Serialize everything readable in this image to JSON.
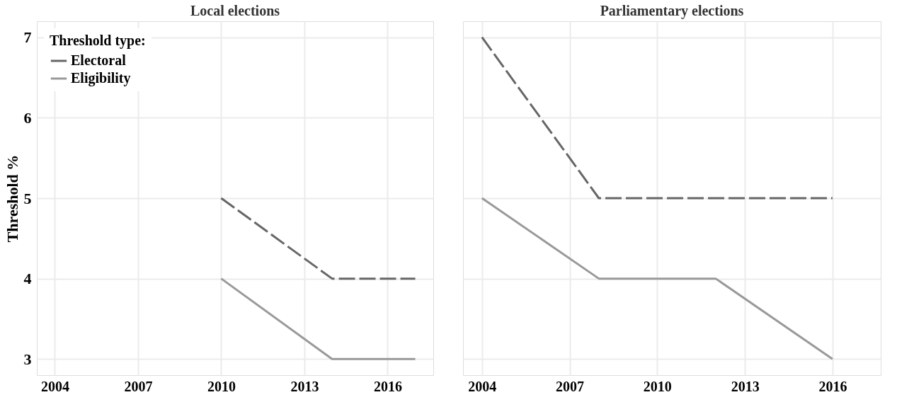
{
  "chart_data": [
    {
      "type": "line",
      "title": "Local elections",
      "ylabel": "Threshold %",
      "legend_title": "Threshold type:",
      "legend": "top left",
      "grid": true,
      "xlim": [
        2003.35,
        2017.65
      ],
      "xticks": [
        2004,
        2007,
        2010,
        2013,
        2016
      ],
      "ylim": [
        2.8,
        7.2
      ],
      "yticks": [
        3,
        4,
        5,
        6,
        7
      ],
      "series": [
        {
          "name": "Electoral",
          "color": "#666666",
          "line_style": "dashed",
          "x": [
            2010,
            2014,
            2017
          ],
          "values": [
            5,
            4,
            4
          ]
        },
        {
          "name": "Eligibility",
          "color": "#999999",
          "line_style": "solid",
          "x": [
            2010,
            2014,
            2017
          ],
          "values": [
            4,
            3,
            3
          ]
        }
      ]
    },
    {
      "type": "line",
      "title": "Parliamentary elections",
      "grid": true,
      "tick_labels": "x",
      "xlim": [
        2003.35,
        2017.65
      ],
      "xticks": [
        2004,
        2007,
        2010,
        2013,
        2016
      ],
      "ylim": [
        2.8,
        7.2
      ],
      "yticks": [
        3,
        4,
        5,
        6,
        7
      ],
      "series": [
        {
          "name": "Electoral",
          "color": "#666666",
          "line_style": "dashed",
          "x": [
            2004,
            2008,
            2012,
            2016
          ],
          "values": [
            7,
            5,
            5,
            5
          ]
        },
        {
          "name": "Eligibility",
          "color": "#999999",
          "line_style": "solid",
          "x": [
            2004,
            2008,
            2012,
            2016
          ],
          "values": [
            5,
            4,
            4,
            3
          ]
        }
      ]
    }
  ]
}
